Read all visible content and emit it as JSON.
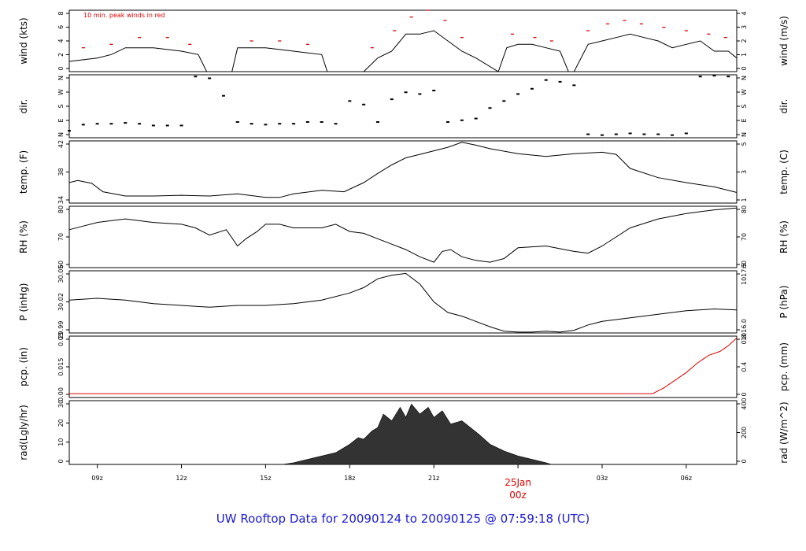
{
  "title": "UW Rooftop Data for 20090124  to  20090125 @ 07:59:18  (UTC)",
  "note": "10 min. peak winds in red",
  "x_axis": {
    "ticks": [
      {
        "label": "09z",
        "hour": 9
      },
      {
        "label": "12z",
        "hour": 12
      },
      {
        "label": "15z",
        "hour": 15
      },
      {
        "label": "18z",
        "hour": 18
      },
      {
        "label": "21z",
        "hour": 21
      },
      {
        "label": "03z",
        "hour": 27
      },
      {
        "label": "06z",
        "hour": 30
      }
    ],
    "day_marker": {
      "line1": "25Jan",
      "line2": "00z",
      "hour": 24,
      "color": "#dd0000"
    }
  },
  "colors": {
    "line": "#000000",
    "peak": "#dd0000",
    "precip": "#dd0000",
    "title": "#1b1bd6",
    "radiation": "#333333"
  },
  "chart_data": [
    {
      "type": "line",
      "id": "wind",
      "ylabel_left": "wind (kts)",
      "ylabel_right": "wind (m/s)",
      "ylim": [
        0,
        9
      ],
      "ticks_left": [
        "0",
        "2",
        "4",
        "6",
        "8"
      ],
      "ticks_right": [
        "0",
        "1",
        "2",
        "3",
        "4"
      ],
      "series": [
        {
          "x": [
            8.0,
            9.0,
            9.5,
            10.0,
            11.0,
            12.0,
            12.6,
            12.9,
            13.8,
            14.0,
            15.0,
            16.0,
            17.0,
            17.2,
            18.5,
            19.0,
            19.5,
            20.0,
            20.5,
            21.0,
            21.5,
            22.0,
            22.5,
            23.3,
            23.6,
            24.0,
            24.5,
            25.0,
            25.5,
            25.8,
            26.0,
            26.5,
            27.0,
            27.5,
            28.0,
            28.5,
            29.0,
            29.5,
            30.0,
            30.5,
            31.0,
            31.5,
            31.8
          ],
          "y": [
            1.5,
            2.0,
            2.5,
            3.5,
            3.5,
            3.0,
            2.5,
            0.0,
            0.0,
            3.5,
            3.5,
            3.0,
            2.5,
            0.0,
            0.0,
            2.0,
            3.0,
            5.5,
            5.5,
            6.0,
            4.5,
            3.0,
            2.0,
            0.0,
            3.5,
            4.0,
            4.0,
            3.5,
            3.0,
            0.0,
            0.0,
            4.0,
            4.5,
            5.0,
            5.5,
            5.0,
            4.5,
            3.5,
            4.0,
            4.5,
            3.0,
            3.0,
            2.0
          ]
        },
        {
          "name": "10 min. peak winds in red",
          "x": [
            8.5,
            9.5,
            10.5,
            11.5,
            12.3,
            14.5,
            15.5,
            16.5,
            18.8,
            19.6,
            20.2,
            20.8,
            21.4,
            22.0,
            23.8,
            24.6,
            25.2,
            26.5,
            27.2,
            27.8,
            28.4,
            29.2,
            30.0,
            30.8,
            31.4
          ],
          "y": [
            3.5,
            4.0,
            5.0,
            5.0,
            4.0,
            4.5,
            4.5,
            4.0,
            3.5,
            6.0,
            8.0,
            9.0,
            7.5,
            5.0,
            5.5,
            5.0,
            4.5,
            6.0,
            7.0,
            7.5,
            7.0,
            6.5,
            6.0,
            5.5,
            5.0
          ]
        }
      ]
    },
    {
      "type": "scatter",
      "id": "dir",
      "ylabel_left": "dir.",
      "ylabel_right": "dir.",
      "ylim": [
        0,
        360
      ],
      "ticks_left": [
        "N",
        "E",
        "S",
        "W",
        "N"
      ],
      "ticks_right": [
        "N",
        "E",
        "S",
        "W",
        "N"
      ],
      "series": [
        {
          "x": [
            8.0,
            8.5,
            9.0,
            9.5,
            10.0,
            10.5,
            11.0,
            11.5,
            12.0,
            12.5,
            13.0,
            13.5,
            14.0,
            14.5,
            15.0,
            15.5,
            16.0,
            16.5,
            17.0,
            17.5,
            18.0,
            18.5,
            19.0,
            19.5,
            20.0,
            20.5,
            21.0,
            21.5,
            22.0,
            22.5,
            23.0,
            23.5,
            24.0,
            24.5,
            25.0,
            25.5,
            26.0,
            26.5,
            27.0,
            27.5,
            28.0,
            28.5,
            29.0,
            29.5,
            30.0,
            30.5,
            31.0,
            31.5
          ],
          "y": [
            40,
            75,
            80,
            80,
            85,
            80,
            70,
            70,
            70,
            350,
            340,
            240,
            90,
            80,
            75,
            80,
            80,
            90,
            90,
            80,
            210,
            190,
            90,
            220,
            260,
            250,
            270,
            90,
            100,
            110,
            170,
            210,
            250,
            280,
            330,
            320,
            300,
            20,
            15,
            20,
            25,
            20,
            20,
            15,
            25,
            350,
            355,
            350
          ]
        }
      ]
    },
    {
      "type": "line",
      "id": "temp",
      "ylabel_left": "temp. (F)",
      "ylabel_right": "temp. (C)",
      "ylim": [
        33.6,
        42.4
      ],
      "ticks_left": [
        "34",
        "38",
        "42"
      ],
      "ticks_right": [
        "1",
        "3",
        "5"
      ],
      "series": [
        {
          "x": [
            8.0,
            8.3,
            8.8,
            9.2,
            10.0,
            11.0,
            12.0,
            13.0,
            14.0,
            15.0,
            15.5,
            16.0,
            17.0,
            17.8,
            18.5,
            19.0,
            19.5,
            20.0,
            20.5,
            21.0,
            21.5,
            22.0,
            22.5,
            23.0,
            24.0,
            25.0,
            26.0,
            27.0,
            27.5,
            28.0,
            29.0,
            30.0,
            31.0,
            31.8
          ],
          "y": [
            36.5,
            36.8,
            36.4,
            35.2,
            34.6,
            34.6,
            34.7,
            34.6,
            34.9,
            34.4,
            34.4,
            34.9,
            35.4,
            35.2,
            36.5,
            37.8,
            39.0,
            40.0,
            40.5,
            41.0,
            41.5,
            42.2,
            41.8,
            41.3,
            40.6,
            40.2,
            40.6,
            40.8,
            40.5,
            38.5,
            37.2,
            36.5,
            35.9,
            35.1
          ]
        }
      ]
    },
    {
      "type": "line",
      "id": "rh",
      "ylabel_left": "RH (%)",
      "ylabel_right": "RH (%)",
      "ylim": [
        54,
        88
      ],
      "ticks_left": [
        "60",
        "70",
        "80"
      ],
      "ticks_right": [
        "60",
        "70",
        "80"
      ],
      "series": [
        {
          "x": [
            8.0,
            8.5,
            9.0,
            10.0,
            11.0,
            12.0,
            12.5,
            13.0,
            13.6,
            14.0,
            14.3,
            14.7,
            15.0,
            15.5,
            16.0,
            16.5,
            17.0,
            17.5,
            18.0,
            18.5,
            19.0,
            19.5,
            20.0,
            20.5,
            21.0,
            21.3,
            21.6,
            22.0,
            22.5,
            23.0,
            23.5,
            24.0,
            25.0,
            26.0,
            26.5,
            27.0,
            27.5,
            28.0,
            29.0,
            30.0,
            31.0,
            31.8
          ],
          "y": [
            75,
            77,
            79,
            81,
            79,
            78,
            76,
            72,
            75,
            66,
            70,
            74,
            78,
            78,
            76,
            76,
            76,
            78,
            74,
            73,
            70,
            67,
            64,
            60,
            57,
            63,
            64,
            60,
            58,
            57,
            59,
            65,
            66,
            63,
            62,
            66,
            71,
            76,
            81,
            84,
            86,
            87
          ]
        }
      ]
    },
    {
      "type": "line",
      "id": "pressure",
      "ylabel_left": "P (inHg)",
      "ylabel_right": "P (hPa)",
      "ylim": [
        29.985,
        30.055
      ],
      "ticks_left": [
        "29.99",
        "30.02",
        "30.05"
      ],
      "ticks_right": [
        "1016.0",
        "1017.5"
      ],
      "series": [
        {
          "x": [
            8.0,
            9.0,
            10.0,
            11.0,
            12.0,
            13.0,
            14.0,
            15.0,
            16.0,
            17.0,
            18.0,
            18.5,
            19.0,
            19.5,
            20.0,
            20.5,
            21.0,
            21.5,
            22.0,
            22.5,
            23.0,
            23.5,
            24.0,
            24.5,
            25.0,
            25.5,
            26.0,
            26.5,
            27.0,
            28.0,
            29.0,
            30.0,
            31.0,
            31.8
          ],
          "y": [
            30.022,
            30.024,
            30.022,
            30.018,
            30.016,
            30.014,
            30.016,
            30.016,
            30.018,
            30.022,
            30.03,
            30.036,
            30.046,
            30.05,
            30.052,
            30.04,
            30.02,
            30.008,
            30.004,
            29.998,
            29.992,
            29.987,
            29.986,
            29.986,
            29.987,
            29.986,
            29.988,
            29.994,
            29.998,
            30.002,
            30.006,
            30.01,
            30.012,
            30.011
          ]
        }
      ]
    },
    {
      "type": "line",
      "id": "precip",
      "ylabel_left": "pcp. (in)",
      "ylabel_right": "pcp. (mm)",
      "ylim": [
        -0.002,
        0.03
      ],
      "ticks_left": [
        "0.00",
        "0.015",
        "0.03"
      ],
      "ticks_right": [
        "0",
        "0.4",
        "0.8"
      ],
      "series": [
        {
          "x": [
            8.0,
            28.8,
            29.2,
            29.6,
            30.0,
            30.4,
            30.8,
            31.2,
            31.5,
            31.8
          ],
          "y": [
            0.0,
            0.0,
            0.003,
            0.007,
            0.011,
            0.016,
            0.02,
            0.022,
            0.025,
            0.029
          ]
        }
      ]
    },
    {
      "type": "area",
      "id": "radiation",
      "ylabel_left": "rad(Lgly/hr)",
      "ylabel_right": "rad (W/m^2)",
      "ylim": [
        0,
        38
      ],
      "ticks_left": [
        "0",
        "10",
        "20",
        "30"
      ],
      "ticks_right": [
        "0",
        "200",
        "400"
      ],
      "series": [
        {
          "x": [
            8.0,
            15.6,
            16.0,
            16.5,
            17.0,
            17.5,
            18.0,
            18.3,
            18.5,
            18.8,
            19.0,
            19.2,
            19.5,
            19.8,
            20.0,
            20.2,
            20.5,
            20.8,
            21.0,
            21.3,
            21.6,
            22.0,
            22.3,
            22.6,
            23.0,
            23.5,
            24.0,
            24.5,
            25.0,
            25.2,
            31.8
          ],
          "y": [
            0.0,
            0.0,
            1.0,
            3.0,
            5.0,
            7.0,
            12.0,
            16.0,
            15.0,
            20.0,
            22.0,
            30.0,
            26.0,
            34.0,
            28.0,
            36.0,
            30.0,
            34.0,
            28.0,
            32.0,
            24.0,
            26.0,
            22.0,
            18.0,
            12.0,
            8.0,
            5.0,
            3.0,
            1.0,
            0.0,
            0.0
          ]
        }
      ]
    }
  ]
}
